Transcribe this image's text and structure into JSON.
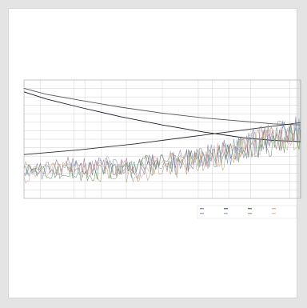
{
  "chart_data": {
    "type": "line",
    "title": "",
    "xlabel": "",
    "ylabel": "",
    "grid": true,
    "legend_position": "bottom-right",
    "x_tick_labels": [
      "",
      "",
      "",
      "",
      "",
      "",
      "",
      "",
      "",
      "",
      "",
      ""
    ],
    "y_tick_labels": [
      "",
      "",
      "",
      "",
      "",
      "",
      "",
      "",
      "",
      "",
      "",
      "",
      "",
      "",
      ""
    ],
    "xlim": [
      0,
      1
    ],
    "ylim": [
      0,
      1
    ],
    "series": [
      {
        "name": "",
        "color": "#555555",
        "noisy": false,
        "x": [
          0,
          0.08,
          0.2,
          0.35,
          0.5,
          0.65,
          0.8,
          0.9,
          1.0
        ],
        "y": [
          0.93,
          0.88,
          0.83,
          0.77,
          0.72,
          0.68,
          0.65,
          0.63,
          0.62
        ]
      },
      {
        "name": "",
        "color": "#1c1c2e",
        "noisy": false,
        "x": [
          0,
          0.08,
          0.2,
          0.35,
          0.5,
          0.65,
          0.8,
          0.9,
          1.0
        ],
        "y": [
          0.9,
          0.84,
          0.77,
          0.69,
          0.62,
          0.56,
          0.51,
          0.49,
          0.48
        ]
      },
      {
        "name": "",
        "color": "#2c2c2c",
        "noisy": false,
        "x": [
          0,
          0.2,
          0.4,
          0.6,
          0.8,
          1.0
        ],
        "y": [
          0.37,
          0.41,
          0.46,
          0.52,
          0.58,
          0.64
        ]
      },
      {
        "name": "",
        "color": "#b29a6a",
        "noisy": true,
        "x": [
          0,
          0.1,
          0.2,
          0.3,
          0.4,
          0.5,
          0.6,
          0.7,
          0.8,
          0.9,
          1.0
        ],
        "y": [
          0.28,
          0.24,
          0.27,
          0.2,
          0.22,
          0.25,
          0.29,
          0.33,
          0.43,
          0.5,
          0.55
        ]
      },
      {
        "name": "",
        "color": "#8a6f9a",
        "noisy": true,
        "x": [
          0,
          0.1,
          0.2,
          0.3,
          0.4,
          0.5,
          0.6,
          0.7,
          0.8,
          0.9,
          1.0
        ],
        "y": [
          0.23,
          0.27,
          0.3,
          0.26,
          0.28,
          0.3,
          0.33,
          0.38,
          0.45,
          0.51,
          0.57
        ]
      },
      {
        "name": "",
        "color": "#6b8fa8",
        "noisy": true,
        "x": [
          0,
          0.1,
          0.2,
          0.3,
          0.4,
          0.5,
          0.6,
          0.7,
          0.8,
          0.9,
          1.0
        ],
        "y": [
          0.2,
          0.22,
          0.25,
          0.27,
          0.25,
          0.28,
          0.32,
          0.36,
          0.44,
          0.52,
          0.58
        ]
      },
      {
        "name": "",
        "color": "#5f8a5a",
        "noisy": true,
        "x": [
          0,
          0.1,
          0.2,
          0.3,
          0.4,
          0.5,
          0.6,
          0.7,
          0.8,
          0.9,
          1.0
        ],
        "y": [
          0.25,
          0.22,
          0.2,
          0.24,
          0.27,
          0.29,
          0.31,
          0.35,
          0.42,
          0.48,
          0.53
        ]
      },
      {
        "name": "",
        "color": "#d4a0a0",
        "noisy": true,
        "x": [
          0,
          0.1,
          0.2,
          0.3,
          0.4,
          0.5,
          0.6,
          0.7,
          0.8,
          0.9,
          1.0
        ],
        "y": [
          0.17,
          0.24,
          0.23,
          0.28,
          0.23,
          0.31,
          0.3,
          0.37,
          0.45,
          0.53,
          0.56
        ]
      }
    ]
  }
}
